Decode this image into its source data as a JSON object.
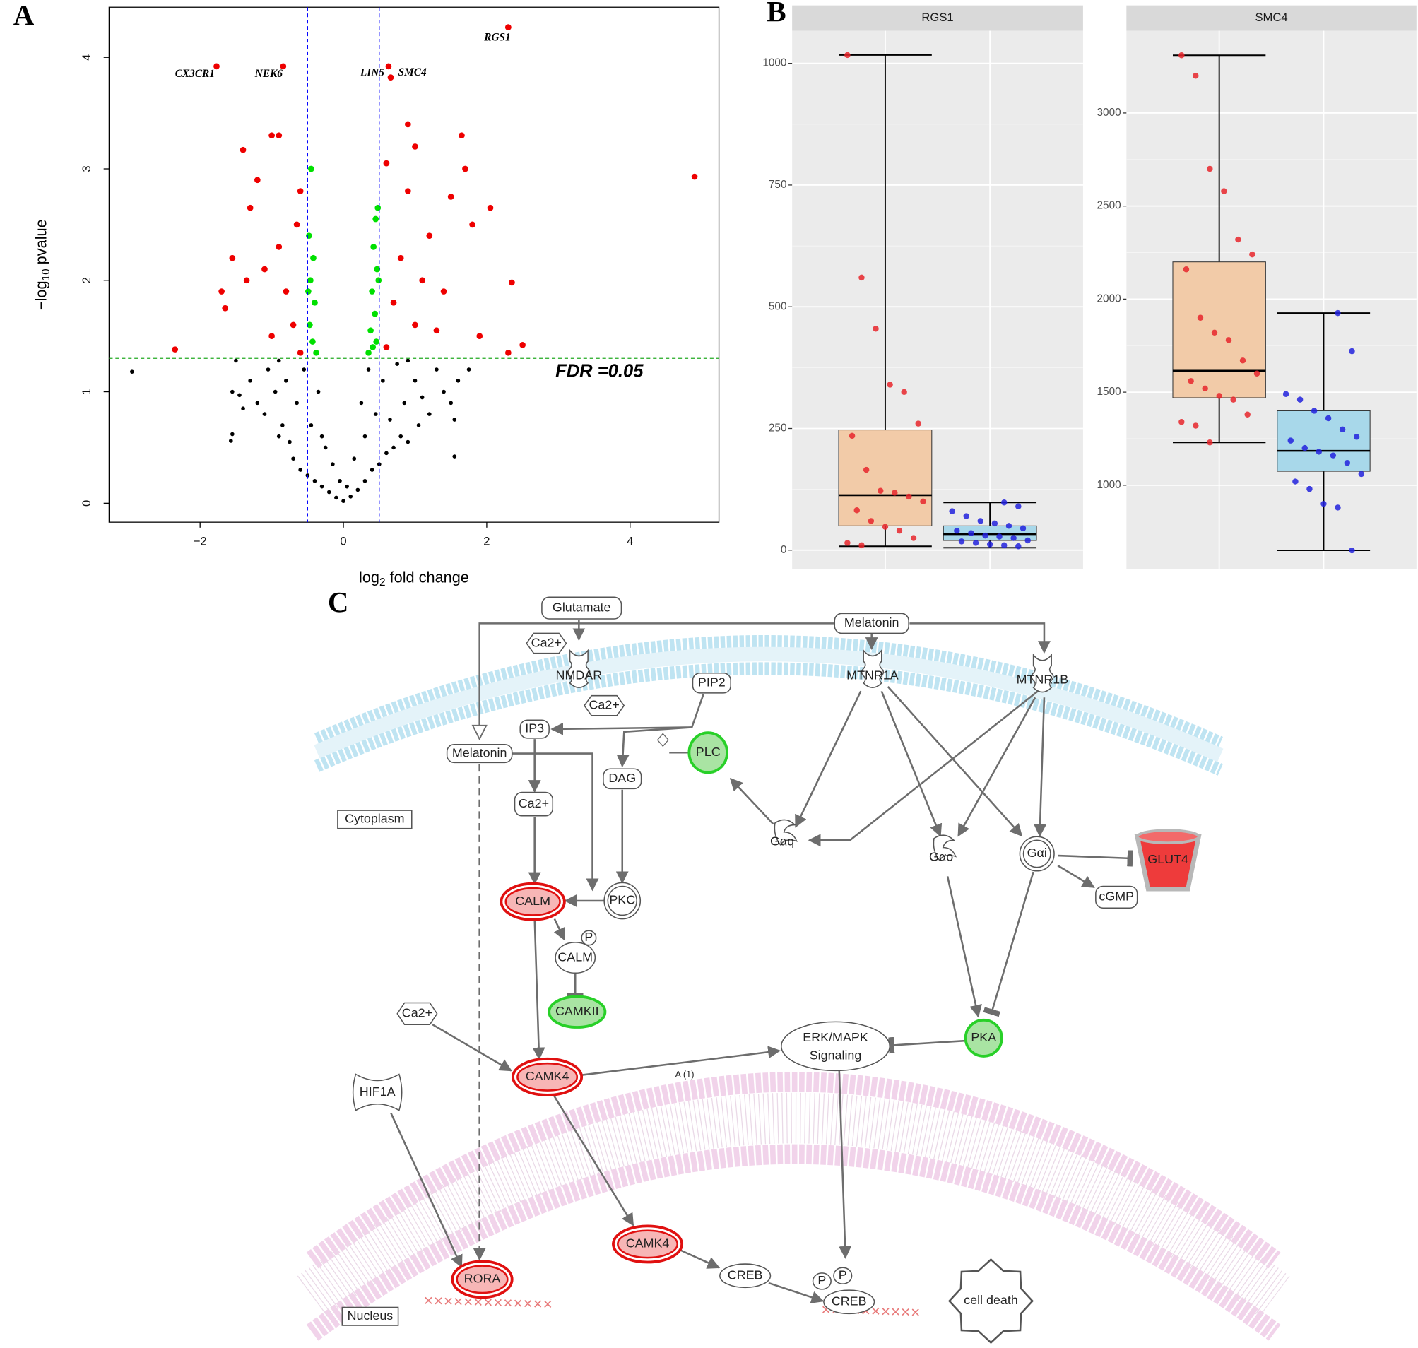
{
  "panel_labels": [
    "A",
    "B",
    "C"
  ],
  "chart_data": [
    {
      "type": "scatter",
      "xlim": [
        -3.27,
        5.24
      ],
      "ylim": [
        -0.17,
        4.45
      ],
      "xticks": [
        {
          "value": -2,
          "label": "−2"
        },
        0,
        2,
        4
      ],
      "yticks": [
        0,
        1,
        2,
        3,
        4
      ],
      "x_label": {
        "text": "log",
        "sub": "2",
        "rest": " fold change"
      },
      "y_label": {
        "text": "−log",
        "sub": "10",
        "rest": " pvalue"
      },
      "thresholds": {
        "x": [
          -0.5,
          0.5
        ],
        "x_color": "#0000ff",
        "y": 1.3,
        "y_color": "#22aa22"
      },
      "threshold_label": "FDR =0.05",
      "series": [
        {
          "color": "#000000",
          "x": [
            -2.95,
            -1.55,
            -1.57,
            -1.55,
            -1.45,
            -1.4,
            -1.3,
            -1.2,
            -1.1,
            -1.05,
            -0.95,
            -0.9,
            -0.85,
            -0.8,
            -0.75,
            -0.7,
            -0.65,
            -0.6,
            -0.55,
            -0.5,
            -0.45,
            -0.4,
            -0.35,
            -0.3,
            -0.25,
            -0.2,
            -0.15,
            -0.1,
            -0.05,
            0,
            0.05,
            0.1,
            0.15,
            0.2,
            0.25,
            0.3,
            0.35,
            0.4,
            0.45,
            0.5,
            0.55,
            0.6,
            0.65,
            0.7,
            0.75,
            0.8,
            0.85,
            0.9,
            1.0,
            1.05,
            1.1,
            1.2,
            1.3,
            1.4,
            1.5,
            1.6,
            1.55,
            1.75,
            1.55,
            -1.5,
            0.9,
            -0.9,
            0.3,
            -0.3
          ],
          "y": [
            1.18,
            0.62,
            0.56,
            1.0,
            0.97,
            0.85,
            1.1,
            0.9,
            0.8,
            1.2,
            1.0,
            0.6,
            0.7,
            1.1,
            0.55,
            0.4,
            0.9,
            0.3,
            1.2,
            0.25,
            0.7,
            0.2,
            1.0,
            0.15,
            0.5,
            0.1,
            0.35,
            0.05,
            0.2,
            0.02,
            0.15,
            0.06,
            0.4,
            0.12,
            0.9,
            0.2,
            1.2,
            0.3,
            0.8,
            0.35,
            1.1,
            0.45,
            0.75,
            0.5,
            1.25,
            0.6,
            0.9,
            0.55,
            1.1,
            0.7,
            0.95,
            0.8,
            1.2,
            1.0,
            0.9,
            1.1,
            0.75,
            1.2,
            0.42,
            1.28,
            1.28,
            1.28,
            0.6,
            0.6
          ]
        },
        {
          "color": "#00e000",
          "x": [
            -0.45,
            -0.48,
            -0.42,
            -0.46,
            -0.4,
            -0.47,
            -0.43,
            -0.38,
            -0.49,
            0.48,
            0.45,
            0.42,
            0.47,
            0.4,
            0.44,
            0.38,
            0.46,
            0.35,
            0.41,
            0.49
          ],
          "y": [
            3.0,
            2.4,
            2.2,
            2.0,
            1.8,
            1.6,
            1.45,
            1.35,
            1.9,
            2.65,
            2.55,
            2.3,
            2.1,
            1.9,
            1.7,
            1.55,
            1.45,
            1.35,
            1.4,
            2.0
          ]
        },
        {
          "color": "#ee0000",
          "x": [
            -1.55,
            -1.7,
            -1.65,
            -2.35,
            -1.4,
            -1.3,
            -1.2,
            -1.0,
            -0.9,
            -0.6,
            -0.65,
            -1.1,
            -0.8,
            -0.7,
            -1.0,
            -0.6,
            -0.9,
            -1.35,
            0.9,
            1.65,
            1.0,
            0.6,
            1.7,
            2.05,
            1.8,
            1.5,
            1.2,
            0.8,
            2.35,
            1.4,
            0.7,
            1.0,
            0.6,
            2.5,
            2.3,
            1.9,
            1.3,
            4.9,
            0.9,
            1.1
          ],
          "y": [
            2.2,
            1.9,
            1.75,
            1.38,
            3.17,
            2.65,
            2.9,
            3.3,
            3.3,
            2.8,
            2.5,
            2.1,
            1.9,
            1.6,
            1.5,
            1.35,
            2.3,
            2.0,
            3.4,
            3.3,
            3.2,
            3.05,
            3.0,
            2.65,
            2.5,
            2.75,
            2.4,
            2.2,
            1.98,
            1.9,
            1.8,
            1.6,
            1.4,
            1.42,
            1.35,
            1.5,
            1.55,
            2.93,
            2.8,
            2.0
          ]
        }
      ],
      "annotations": [
        {
          "text": "RGS1",
          "x": 2.3,
          "y": 4.27
        },
        {
          "text": "CX3CR1",
          "x": -1.77,
          "y": 3.92
        },
        {
          "text": "NEK6",
          "x": -0.84,
          "y": 3.92
        },
        {
          "text": "LIN5",
          "x": 0.63,
          "y": 3.92
        },
        {
          "text": "SMC4",
          "x": 0.66,
          "y": 3.82
        }
      ]
    },
    {
      "type": "box",
      "title": "RGS1",
      "categories": [
        null,
        null
      ],
      "ylim": [
        -39,
        1067
      ],
      "yticks": [
        0,
        250,
        500,
        750,
        1000
      ],
      "grid": true,
      "boxes": [
        {
          "min": 8,
          "q1": 50,
          "median": 113,
          "q3": 247,
          "max": 1017,
          "color": "#f2cba8",
          "point_color": "#e8262b",
          "points": [
            1017,
            560,
            455,
            340,
            325,
            260,
            235,
            165,
            122,
            118,
            110,
            100,
            82,
            60,
            48,
            40,
            25,
            15,
            10
          ]
        },
        {
          "min": 5,
          "q1": 20,
          "median": 33,
          "q3": 50,
          "max": 98,
          "color": "#a8d8ea",
          "point_color": "#2222dd",
          "points": [
            98,
            90,
            80,
            70,
            60,
            55,
            50,
            45,
            40,
            35,
            30,
            28,
            25,
            20,
            18,
            15,
            12,
            10,
            8
          ]
        }
      ]
    },
    {
      "type": "box",
      "title": "SMC4",
      "categories": [
        null,
        null
      ],
      "ylim": [
        549,
        3442
      ],
      "yticks": [
        1000,
        1500,
        2000,
        2500,
        3000
      ],
      "grid": true,
      "boxes": [
        {
          "min": 1230,
          "q1": 1470,
          "median": 1615,
          "q3": 2200,
          "max": 3310,
          "color": "#f2cba8",
          "point_color": "#e8262b",
          "points": [
            3310,
            3200,
            2700,
            2580,
            2320,
            2240,
            2160,
            1900,
            1820,
            1780,
            1670,
            1600,
            1560,
            1520,
            1480,
            1460,
            1380,
            1340,
            1320,
            1230
          ]
        },
        {
          "min": 650,
          "q1": 1075,
          "median": 1185,
          "q3": 1400,
          "max": 1925,
          "color": "#a8d8ea",
          "point_color": "#2222dd",
          "points": [
            1925,
            1720,
            1490,
            1460,
            1400,
            1360,
            1300,
            1260,
            1240,
            1200,
            1180,
            1160,
            1120,
            1060,
            1020,
            980,
            900,
            880,
            650
          ]
        }
      ]
    }
  ],
  "diagram": {
    "nodes": [
      {
        "label": "Glutamate"
      },
      {
        "label": "Melatonin"
      },
      {
        "label": "Ca2+"
      },
      {
        "label": "NMDAR"
      },
      {
        "label": "Ca2+"
      },
      {
        "label": "PIP2"
      },
      {
        "label": "MTNR1A"
      },
      {
        "label": "MTNR1B"
      },
      {
        "label": "IP3"
      },
      {
        "label": "Melatonin"
      },
      {
        "label": "PLC"
      },
      {
        "label": "DAG"
      },
      {
        "label": "Ca2+"
      },
      {
        "label": "Cytoplasm"
      },
      {
        "label": "Gαq"
      },
      {
        "label": "Gαo"
      },
      {
        "label": "Gαi"
      },
      {
        "label": "GLUT4"
      },
      {
        "label": "cGMP"
      },
      {
        "label": "CALM"
      },
      {
        "label": "PKC"
      },
      {
        "label": "P"
      },
      {
        "label": "CALM"
      },
      {
        "label": "CAMKII"
      },
      {
        "label": "Ca2+"
      },
      {
        "label": "ERK/MAPK",
        "sublabel": "Signaling"
      },
      {
        "label": "PKA"
      },
      {
        "label": "CAMK4"
      },
      {
        "label": "HIF1A"
      },
      {
        "label": "CAMK4"
      },
      {
        "label": "CREB"
      },
      {
        "label": "P"
      },
      {
        "label": "P"
      },
      {
        "label": "CREB"
      },
      {
        "label": "RORA"
      },
      {
        "label": "Nucleus"
      },
      {
        "label": "cell death"
      }
    ],
    "edge_labels": [
      "A (1)"
    ]
  }
}
